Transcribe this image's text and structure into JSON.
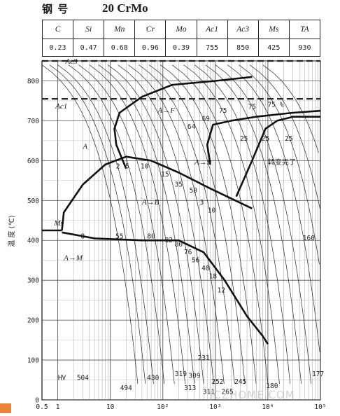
{
  "title": {
    "label": "钢 号",
    "grade": "20 CrMo"
  },
  "composition": {
    "headers": [
      "C",
      "Si",
      "Mn",
      "Cr",
      "Mo",
      "Ac1",
      "Ac3",
      "Ms",
      "TA"
    ],
    "values": [
      "0.23",
      "0.47",
      "0.68",
      "0.96",
      "0.39",
      "755",
      "850",
      "425",
      "930"
    ]
  },
  "chart_data": {
    "type": "line",
    "subtype": "CCT continuous-cooling-transformation diagram",
    "ylabel": "温 度 (℃)",
    "xscale": "log",
    "xlim": [
      0.5,
      100000
    ],
    "ylim": [
      0,
      850
    ],
    "x_tick_labels": [
      "0.5",
      "1",
      "10",
      "10²",
      "10³",
      "10⁴",
      "10⁵"
    ],
    "x_ticks": [
      0.5,
      1,
      10,
      100,
      1000,
      10000,
      100000
    ],
    "y_tick_labels": [
      "0",
      "100",
      "200",
      "300",
      "400",
      "500",
      "600",
      "700",
      "800"
    ],
    "y_ticks": [
      0,
      100,
      200,
      300,
      400,
      500,
      600,
      700,
      800
    ],
    "grid": true,
    "reference_lines": [
      {
        "label": "Ac3",
        "y": 850
      },
      {
        "label": "Ac1",
        "y": 755
      },
      {
        "label": "Ms",
        "y": 425
      }
    ],
    "region_labels": [
      "A",
      "A→F",
      "A→P",
      "A→B",
      "A→M",
      "转变完了"
    ],
    "ferrite_start": {
      "x": [
        20,
        13,
        12,
        15,
        40,
        150,
        1000,
        5000
      ],
      "y": [
        580,
        640,
        680,
        720,
        760,
        790,
        800,
        810
      ]
    },
    "pearlite_start": {
      "x": [
        800,
        700,
        900,
        2000,
        6000,
        30000,
        100000
      ],
      "y": [
        590,
        640,
        690,
        700,
        710,
        720,
        725
      ]
    },
    "pearlite_finish": {
      "x": [
        2500,
        5000,
        9000,
        15000,
        30000,
        100000
      ],
      "y": [
        510,
        600,
        680,
        700,
        710,
        710
      ]
    },
    "bainite_start": {
      "x": [
        1.2,
        1.3,
        3,
        8,
        20,
        60,
        200,
        800,
        5000
      ],
      "y": [
        425,
        470,
        540,
        590,
        610,
        600,
        570,
        530,
        480
      ]
    },
    "transformation_end": {
      "x": [
        1.2,
        5,
        40,
        200,
        600,
        1500,
        4000,
        8000,
        10000
      ],
      "y": [
        420,
        405,
        400,
        400,
        370,
        300,
        210,
        160,
        140
      ]
    },
    "ms_line": {
      "x": [
        0.5,
        1.2
      ],
      "y": [
        425,
        425
      ]
    },
    "cooling_curve_numbers": [
      {
        "text": "2",
        "x": 14,
        "y": 580
      },
      {
        "text": "5",
        "x": 21,
        "y": 580
      },
      {
        "text": "10",
        "x": 45,
        "y": 580
      },
      {
        "text": "15",
        "x": 110,
        "y": 560
      },
      {
        "text": "35",
        "x": 200,
        "y": 535
      },
      {
        "text": "50",
        "x": 380,
        "y": 520
      },
      {
        "text": "3",
        "x": 550,
        "y": 490
      },
      {
        "text": "10",
        "x": 850,
        "y": 470
      },
      {
        "text": "64",
        "x": 350,
        "y": 680
      },
      {
        "text": "69",
        "x": 660,
        "y": 700
      },
      {
        "text": "75",
        "x": 1400,
        "y": 720
      },
      {
        "text": "75",
        "x": 5000,
        "y": 730
      },
      {
        "text": "75 %",
        "x": 14000,
        "y": 735
      },
      {
        "text": "25",
        "x": 3500,
        "y": 650
      },
      {
        "text": "25",
        "x": 9000,
        "y": 650
      },
      {
        "text": "25",
        "x": 25000,
        "y": 650
      },
      {
        "text": "8",
        "x": 3,
        "y": 405
      },
      {
        "text": "55",
        "x": 15,
        "y": 405
      },
      {
        "text": "80",
        "x": 60,
        "y": 405
      },
      {
        "text": "82",
        "x": 130,
        "y": 395
      },
      {
        "text": "80",
        "x": 200,
        "y": 385
      },
      {
        "text": "76",
        "x": 300,
        "y": 365
      },
      {
        "text": "56",
        "x": 420,
        "y": 345
      },
      {
        "text": "40",
        "x": 650,
        "y": 325
      },
      {
        "text": "18",
        "x": 900,
        "y": 305
      },
      {
        "text": "12",
        "x": 1300,
        "y": 270
      },
      {
        "text": "160",
        "x": 60000,
        "y": 400
      },
      {
        "text": "231",
        "x": 600,
        "y": 100
      }
    ],
    "hardness_values": [
      {
        "text": "HV",
        "x": 1.2,
        "y": 50
      },
      {
        "text": "504",
        "x": 3,
        "y": 50
      },
      {
        "text": "494",
        "x": 20,
        "y": 25
      },
      {
        "text": "430",
        "x": 65,
        "y": 50
      },
      {
        "text": "319",
        "x": 220,
        "y": 60
      },
      {
        "text": "313",
        "x": 330,
        "y": 25
      },
      {
        "text": "309",
        "x": 400,
        "y": 55
      },
      {
        "text": "311",
        "x": 750,
        "y": 15
      },
      {
        "text": "252",
        "x": 1100,
        "y": 40
      },
      {
        "text": "265",
        "x": 1700,
        "y": 15
      },
      {
        "text": "245",
        "x": 3000,
        "y": 40
      },
      {
        "text": "180",
        "x": 12000,
        "y": 30
      },
      {
        "text": "177",
        "x": 90000,
        "y": 60
      }
    ]
  },
  "watermark": "JCZHOME.COM"
}
